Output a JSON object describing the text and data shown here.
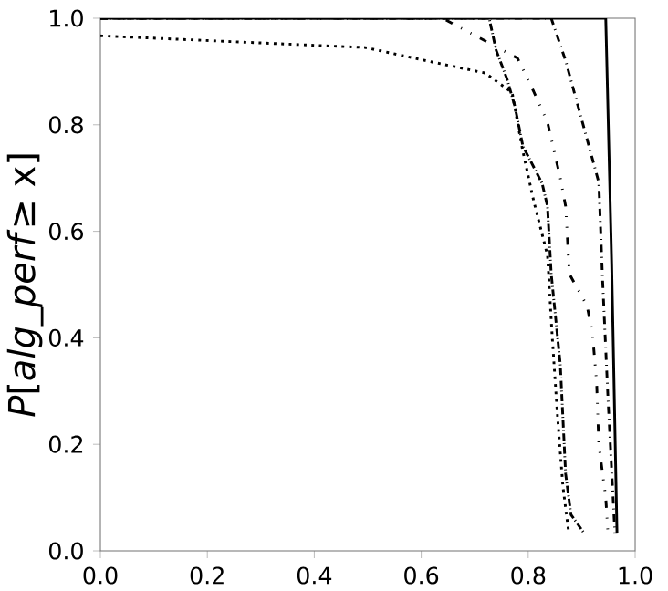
{
  "chart_data": {
    "type": "line",
    "ylabel": "*P*[*alg_perf*≥ x]",
    "xlim": [
      0.0,
      1.0
    ],
    "ylim": [
      0.0,
      1.0
    ],
    "xticks": [
      {
        "value": 0,
        "label": "0.0"
      },
      {
        "value": 0.2,
        "label": "0.2"
      },
      {
        "value": 0.4,
        "label": "0.4"
      },
      {
        "value": 0.6,
        "label": "0.6"
      },
      {
        "value": 0.8,
        "label": "0.8"
      },
      {
        "value": 1,
        "label": "1.0"
      }
    ],
    "yticks": [
      {
        "value": 0,
        "label": "0.0"
      },
      {
        "value": 0.2,
        "label": "0.2"
      },
      {
        "value": 0.4,
        "label": "0.4"
      },
      {
        "value": 0.6,
        "label": "0.6"
      },
      {
        "value": 0.8,
        "label": "0.8"
      },
      {
        "value": 1,
        "label": "1.0"
      }
    ],
    "grid": false,
    "marker": "none",
    "series": [
      {
        "color": "#000000",
        "line_style": "solid",
        "x": [
          0.0,
          0.945,
          0.956,
          0.966
        ],
        "values": [
          1.0,
          1.0,
          0.54,
          0.034
        ]
      },
      {
        "color": "#000000",
        "line_style": "dashdot",
        "x": [
          0.0,
          0.843,
          0.87,
          0.904,
          0.932,
          0.939,
          0.949,
          0.962
        ],
        "values": [
          1.0,
          1.0,
          0.92,
          0.795,
          0.692,
          0.51,
          0.29,
          0.034
        ]
      },
      {
        "color": "#000000",
        "line_style": "dashdotdot",
        "x": [
          0.0,
          0.64,
          0.78,
          0.81,
          0.836,
          0.86,
          0.87,
          0.877,
          0.91,
          0.92,
          0.928,
          0.932,
          0.945,
          0.949
        ],
        "values": [
          1.0,
          1.0,
          0.925,
          0.863,
          0.805,
          0.7,
          0.647,
          0.52,
          0.46,
          0.41,
          0.315,
          0.2,
          0.1,
          0.034
        ]
      },
      {
        "color": "#000000",
        "line_style": "densely dashdot",
        "x": [
          0.0,
          0.727,
          0.74,
          0.76,
          0.775,
          0.79,
          0.826,
          0.836,
          0.843,
          0.86,
          0.87,
          0.88,
          0.904
        ],
        "values": [
          1.0,
          1.0,
          0.94,
          0.887,
          0.835,
          0.76,
          0.69,
          0.647,
          0.52,
          0.35,
          0.144,
          0.068,
          0.034
        ]
      },
      {
        "color": "#000000",
        "line_style": "dotted",
        "x": [
          0.0,
          0.495,
          0.61,
          0.72,
          0.77,
          0.79,
          0.81,
          0.836,
          0.845,
          0.855,
          0.865,
          0.875
        ],
        "values": [
          0.967,
          0.945,
          0.92,
          0.897,
          0.86,
          0.75,
          0.658,
          0.555,
          0.4,
          0.25,
          0.12,
          0.04
        ]
      }
    ]
  }
}
